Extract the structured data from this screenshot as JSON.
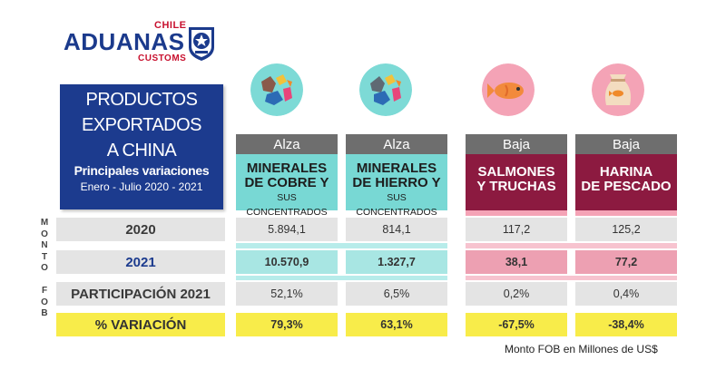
{
  "logo": {
    "top": "CHILE",
    "name": "ADUANAS",
    "bottom": "CUSTOMS"
  },
  "title": {
    "lines": [
      "PRODUCTOS",
      "EXPORTADOS",
      "A CHINA"
    ],
    "subtitle": "Principales variaciones",
    "period": "Enero - Julio  2020 - 2021"
  },
  "side_label": "MONTO FOB",
  "rows": {
    "r2020": "2020",
    "r2021": "2021",
    "share": "PARTICIPACIÓN 2021",
    "variation": "% VARIACIÓN"
  },
  "products": [
    {
      "trend": "Alza",
      "name1": "MINERALES",
      "name2": "DE COBRE Y",
      "name3": "SUS CONCENTRADOS",
      "v2020": "5.894,1",
      "v2021": "10.570,9",
      "share": "52,1%",
      "variation": "79,3%"
    },
    {
      "trend": "Alza",
      "name1": "MINERALES",
      "name2": "DE HIERRO Y",
      "name3": "SUS CONCENTRADOS",
      "v2020": "814,1",
      "v2021": "1.327,7",
      "share": "6,5%",
      "variation": "63,1%"
    },
    {
      "trend": "Baja",
      "name1": "SALMONES",
      "name2": "Y TRUCHAS",
      "name3": "",
      "v2020": "117,2",
      "v2021": "38,1",
      "share": "0,2%",
      "variation": "-67,5%"
    },
    {
      "trend": "Baja",
      "name1": "HARINA",
      "name2": "DE PESCADO",
      "name3": "",
      "v2020": "125,2",
      "v2021": "77,2",
      "share": "0,4%",
      "variation": "-38,4%"
    }
  ],
  "icons": [
    "copper-minerals-icon",
    "iron-minerals-icon",
    "salmon-fish-icon",
    "fishmeal-sack-icon"
  ],
  "colors": {
    "navy": "#1c3b8e",
    "teal": "#78d8d4",
    "wine": "#8c1a40",
    "pink": "#f4a3b6",
    "yellow": "#f8ec4a",
    "grey": "#e4e4e4"
  },
  "footer": "Monto FOB en Millones de US$"
}
